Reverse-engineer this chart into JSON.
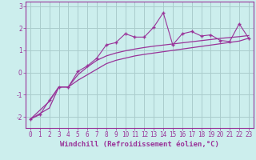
{
  "xlabel": "Windchill (Refroidissement éolien,°C)",
  "bg_color": "#cceeed",
  "line_color": "#993399",
  "grid_color": "#aacccc",
  "axis_color": "#993399",
  "spine_color": "#993399",
  "x_data": [
    0,
    1,
    2,
    3,
    4,
    5,
    6,
    7,
    8,
    9,
    10,
    11,
    12,
    13,
    14,
    15,
    16,
    17,
    18,
    19,
    20,
    21,
    22,
    23
  ],
  "y_scatter": [
    -2.1,
    -1.9,
    -1.25,
    -0.65,
    -0.65,
    0.05,
    0.3,
    0.65,
    1.25,
    1.35,
    1.75,
    1.6,
    1.6,
    2.05,
    2.7,
    1.25,
    1.75,
    1.85,
    1.65,
    1.7,
    1.45,
    1.4,
    2.2,
    1.55
  ],
  "y_fit1": [
    -2.1,
    -1.85,
    -1.6,
    -0.65,
    -0.65,
    -0.35,
    -0.1,
    0.15,
    0.4,
    0.55,
    0.65,
    0.75,
    0.82,
    0.88,
    0.94,
    1.0,
    1.06,
    1.12,
    1.18,
    1.24,
    1.3,
    1.36,
    1.42,
    1.55
  ],
  "y_fit2": [
    -2.1,
    -1.7,
    -1.3,
    -0.65,
    -0.65,
    -0.1,
    0.25,
    0.55,
    0.75,
    0.88,
    0.98,
    1.06,
    1.13,
    1.19,
    1.24,
    1.29,
    1.34,
    1.39,
    1.44,
    1.49,
    1.54,
    1.58,
    1.62,
    1.67
  ],
  "xlim": [
    -0.5,
    23.5
  ],
  "ylim": [
    -2.5,
    3.2
  ],
  "xticks": [
    0,
    1,
    2,
    3,
    4,
    5,
    6,
    7,
    8,
    9,
    10,
    11,
    12,
    13,
    14,
    15,
    16,
    17,
    18,
    19,
    20,
    21,
    22,
    23
  ],
  "yticks": [
    -2,
    -1,
    0,
    1,
    2,
    3
  ],
  "tick_fontsize": 5.5,
  "xlabel_fontsize": 6.5
}
